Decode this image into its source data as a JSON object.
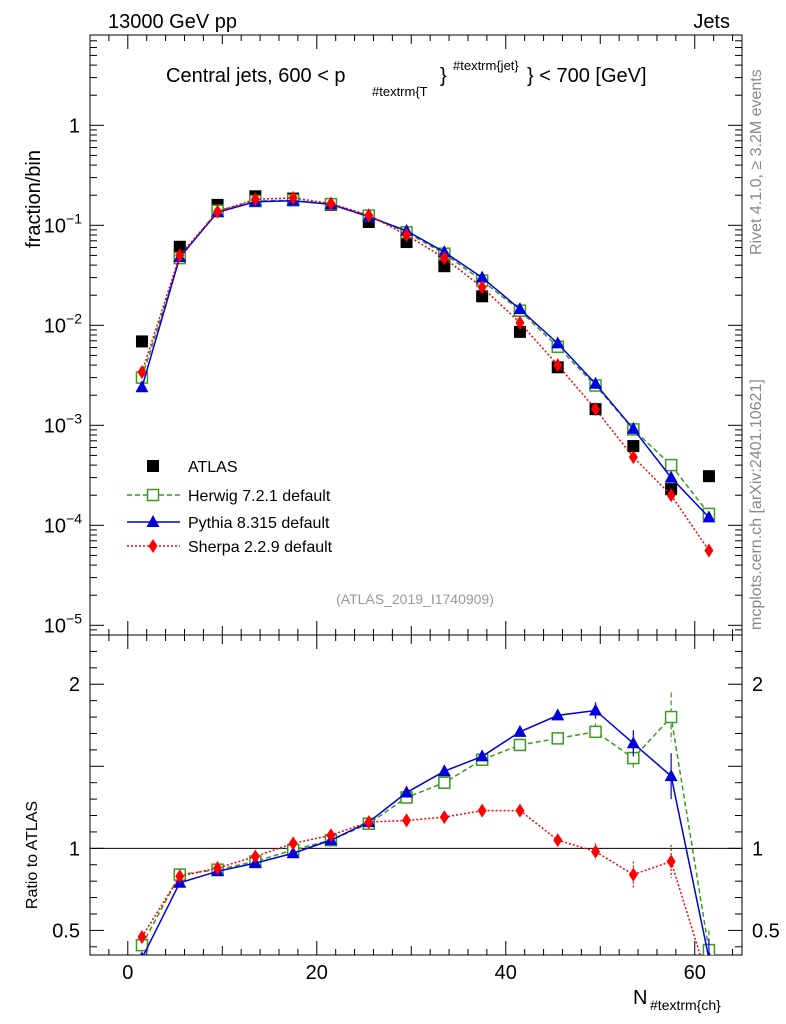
{
  "header": {
    "left": "13000 GeV pp",
    "right": "Jets"
  },
  "side_labels": {
    "top": "Rivet 4.1.0, ≥ 3.2M events",
    "bottom": "mcplots.cern.ch [arXiv:2401.10621]"
  },
  "watermark": "(ATLAS_2019_I1740909)",
  "colors": {
    "atlas": "#000000",
    "herwig": "#3c9a1e",
    "pythia": "#0000dd",
    "sherpa": "#ff0000"
  },
  "chart_data": [
    {
      "type": "scatter",
      "yscale": "log",
      "title": "Central jets, 600 < p_{#textrm{T}}^{#textrm{jet}} < 700 [GeV]",
      "title_parts": {
        "pre": "Central jets, 600 < p",
        "sub": "#textrm{T",
        "brace": "}",
        "sup": "#textrm{jet}",
        "post": "} < 700 [GeV]"
      },
      "ylabel": "fraction/bin",
      "xlim": [
        -4,
        65
      ],
      "ylim": [
        8e-06,
        8
      ],
      "y_ticks": [
        {
          "value": 1,
          "base": "1",
          "exp": ""
        },
        {
          "value": 0.1,
          "base": "10",
          "exp": "−1"
        },
        {
          "value": 0.01,
          "base": "10",
          "exp": "−2"
        },
        {
          "value": 0.001,
          "base": "10",
          "exp": "−3"
        },
        {
          "value": 0.0001,
          "base": "10",
          "exp": "−4"
        },
        {
          "value": 1e-05,
          "base": "10",
          "exp": "−5"
        }
      ],
      "x": [
        1.5,
        5.5,
        9.5,
        13.5,
        17.5,
        21.5,
        25.5,
        29.5,
        33.5,
        37.5,
        41.5,
        45.5,
        49.5,
        53.5,
        57.5,
        61.5
      ],
      "series": [
        {
          "name": "ATLAS",
          "values": [
            0.0069,
            0.061,
            0.16,
            0.195,
            0.185,
            0.16,
            0.108,
            0.068,
            0.039,
            0.0195,
            0.0086,
            0.0038,
            0.00145,
            0.00062,
            0.00023,
            0.00031
          ]
        },
        {
          "name": "Herwig 7.2.1 default",
          "values": [
            0.003,
            0.047,
            0.14,
            0.175,
            0.178,
            0.163,
            0.125,
            0.085,
            0.052,
            0.028,
            0.014,
            0.0061,
            0.0025,
            0.00091,
            0.0004,
            0.00013
          ]
        },
        {
          "name": "Pythia 8.315 default",
          "values": [
            0.0024,
            0.048,
            0.135,
            0.172,
            0.176,
            0.162,
            0.122,
            0.088,
            0.054,
            0.03,
            0.0145,
            0.0066,
            0.0026,
            0.00092,
            0.0003,
            0.00012
          ]
        },
        {
          "name": "Sherpa 2.2.9 default",
          "values": [
            0.0034,
            0.05,
            0.137,
            0.182,
            0.188,
            0.165,
            0.126,
            0.08,
            0.047,
            0.024,
            0.0106,
            0.004,
            0.00145,
            0.00048,
            0.0002,
            5.6e-05
          ]
        }
      ]
    },
    {
      "type": "line",
      "ylabel": "Ratio to ATLAS",
      "xlabel": "N_{#textrm{ch}}",
      "xlabel_parts": {
        "main": "N",
        "sub": "#textrm{ch}"
      },
      "xlim": [
        -4,
        65
      ],
      "ylim": [
        0.35,
        2.3
      ],
      "x_ticks": [
        0,
        20,
        40,
        60
      ],
      "y_ticks": [
        "0.5",
        "1",
        "2"
      ],
      "reference_line": 1,
      "x": [
        1.5,
        5.5,
        9.5,
        13.5,
        17.5,
        21.5,
        25.5,
        29.5,
        33.5,
        37.5,
        41.5,
        45.5,
        49.5,
        53.5,
        57.5,
        61.5
      ],
      "series": [
        {
          "name": "Herwig 7.2.1 default",
          "values": [
            0.41,
            0.84,
            0.87,
            0.92,
            0.99,
            1.05,
            1.15,
            1.31,
            1.4,
            1.54,
            1.63,
            1.67,
            1.71,
            1.55,
            1.8,
            0.38
          ],
          "errors": [
            0.02,
            0.01,
            0.01,
            0.01,
            0.01,
            0.01,
            0.01,
            0.01,
            0.01,
            0.02,
            0.02,
            0.03,
            0.05,
            0.07,
            0.15,
            0.12
          ]
        },
        {
          "name": "Pythia 8.315 default",
          "values": [
            0.33,
            0.79,
            0.86,
            0.91,
            0.97,
            1.05,
            1.16,
            1.34,
            1.47,
            1.56,
            1.71,
            1.81,
            1.84,
            1.64,
            1.44,
            0.33
          ],
          "errors": [
            0.02,
            0.01,
            0.01,
            0.01,
            0.01,
            0.01,
            0.01,
            0.01,
            0.01,
            0.02,
            0.02,
            0.03,
            0.05,
            0.08,
            0.14,
            0.12
          ]
        },
        {
          "name": "Sherpa 2.2.9 default",
          "values": [
            0.46,
            0.83,
            0.88,
            0.95,
            1.03,
            1.08,
            1.16,
            1.17,
            1.19,
            1.23,
            1.23,
            1.05,
            0.98,
            0.84,
            0.92,
            0.18
          ],
          "errors": [
            0.03,
            0.01,
            0.01,
            0.01,
            0.01,
            0.01,
            0.01,
            0.01,
            0.01,
            0.02,
            0.02,
            0.03,
            0.05,
            0.08,
            0.1,
            0.08
          ]
        }
      ]
    }
  ]
}
